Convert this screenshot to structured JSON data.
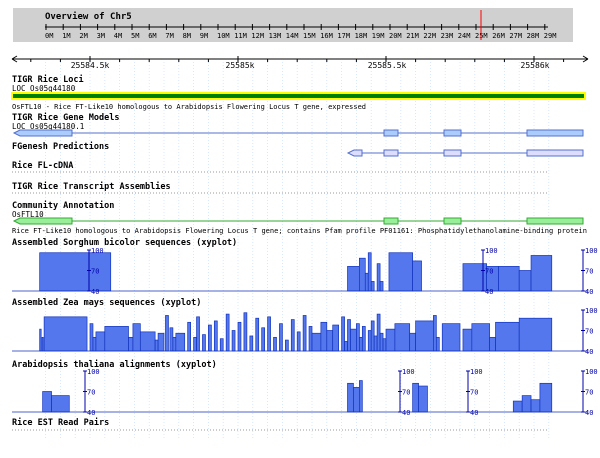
{
  "overview": {
    "title": "Overview of Chr5",
    "ticks": [
      "0M",
      "1M",
      "2M",
      "3M",
      "4M",
      "5M",
      "6M",
      "7M",
      "8M",
      "9M",
      "10M",
      "11M",
      "12M",
      "13M",
      "14M",
      "15M",
      "16M",
      "17M",
      "18M",
      "19M",
      "20M",
      "21M",
      "22M",
      "23M",
      "24M",
      "25M",
      "26M",
      "27M",
      "28M",
      "29M"
    ]
  },
  "ruler": {
    "labels": [
      "25584.5k",
      "25585k",
      "25585.5k",
      "25586k"
    ]
  },
  "tracks": {
    "tigr_loci": {
      "title": "TIGR Rice Loci",
      "feature_name": "LOC_Os05g44180",
      "description": "OsFTL10 - Rice FT-Like10 homologous to Arabidopsis Flowering Locus T gene, expressed"
    },
    "tigr_models": {
      "title": "TIGR Rice Gene Models",
      "feature_name": "LOC_Os05g44180.1"
    },
    "fgenesh": {
      "title": "FGenesh Predictions"
    },
    "fl_cdna": {
      "title": "Rice FL-cDNA"
    },
    "transcript_assemblies": {
      "title": "TIGR Rice Transcript Assemblies"
    },
    "community": {
      "title": "Community Annotation",
      "feature_name": "OsFTL10",
      "description": "Rice FT-Like10 homologous to Arabidopsis Flowering Locus T gene; contains Pfam profile PF01161: Phosphatidylethanolamine-binding protein"
    },
    "sorghum": {
      "title": "Assembled Sorghum bicolor sequences (xyplot)",
      "scale_labels": [
        "100",
        "70",
        "40"
      ]
    },
    "zea": {
      "title": "Assembled Zea mays sequences (xyplot)",
      "scale_labels": [
        "100",
        "70",
        "40"
      ]
    },
    "arabidopsis": {
      "title": "Arabidopsis thaliana alignments (xyplot)",
      "scale_labels": [
        "100",
        "70",
        "40"
      ]
    },
    "est_pairs": {
      "title": "Rice EST Read Pairs"
    }
  },
  "xyplots": {
    "sorghum": [
      {
        "x0": 25584.33,
        "x1": 25584.57,
        "v": 96
      },
      {
        "x0": 25585.37,
        "x1": 25585.41,
        "v": 76
      },
      {
        "x0": 25585.41,
        "x1": 25585.43,
        "v": 88
      },
      {
        "x0": 25585.43,
        "x1": 25585.44,
        "v": 66
      },
      {
        "x0": 25585.44,
        "x1": 25585.45,
        "v": 96
      },
      {
        "x0": 25585.45,
        "x1": 25585.46,
        "v": 54
      },
      {
        "x0": 25585.47,
        "x1": 25585.48,
        "v": 80
      },
      {
        "x0": 25585.48,
        "x1": 25585.49,
        "v": 54
      },
      {
        "x0": 25585.51,
        "x1": 25585.59,
        "v": 96
      },
      {
        "x0": 25585.59,
        "x1": 25585.62,
        "v": 84
      },
      {
        "x0": 25585.76,
        "x1": 25585.84,
        "v": 80
      },
      {
        "x0": 25585.84,
        "x1": 25585.88,
        "v": 76
      },
      {
        "x0": 25585.88,
        "x1": 25585.95,
        "v": 76
      },
      {
        "x0": 25585.95,
        "x1": 25585.99,
        "v": 70
      },
      {
        "x0": 25585.99,
        "x1": 25586.06,
        "v": 92
      }
    ],
    "zea": [
      {
        "x0": 25584.33,
        "x1": 25584.335,
        "v": 72
      },
      {
        "x0": 25584.338,
        "x1": 25584.342,
        "v": 60
      },
      {
        "x0": 25584.345,
        "x1": 25584.49,
        "v": 90
      },
      {
        "x0": 25584.5,
        "x1": 25584.51,
        "v": 80
      },
      {
        "x0": 25584.51,
        "x1": 25584.52,
        "v": 60
      },
      {
        "x0": 25584.52,
        "x1": 25584.55,
        "v": 68
      },
      {
        "x0": 25584.55,
        "x1": 25584.63,
        "v": 76
      },
      {
        "x0": 25584.63,
        "x1": 25584.645,
        "v": 60
      },
      {
        "x0": 25584.645,
        "x1": 25584.67,
        "v": 80
      },
      {
        "x0": 25584.67,
        "x1": 25584.72,
        "v": 68
      },
      {
        "x0": 25584.72,
        "x1": 25584.73,
        "v": 56
      },
      {
        "x0": 25584.73,
        "x1": 25584.75,
        "v": 66
      },
      {
        "x0": 25584.755,
        "x1": 25584.765,
        "v": 92
      },
      {
        "x0": 25584.77,
        "x1": 25584.78,
        "v": 74
      },
      {
        "x0": 25584.78,
        "x1": 25584.79,
        "v": 60
      },
      {
        "x0": 25584.79,
        "x1": 25584.82,
        "v": 66
      },
      {
        "x0": 25584.83,
        "x1": 25584.84,
        "v": 82
      },
      {
        "x0": 25584.85,
        "x1": 25584.86,
        "v": 60
      },
      {
        "x0": 25584.86,
        "x1": 25584.87,
        "v": 90
      },
      {
        "x0": 25584.88,
        "x1": 25584.89,
        "v": 64
      },
      {
        "x0": 25584.9,
        "x1": 25584.91,
        "v": 78
      },
      {
        "x0": 25584.92,
        "x1": 25584.93,
        "v": 84
      },
      {
        "x0": 25584.94,
        "x1": 25584.95,
        "v": 58
      },
      {
        "x0": 25584.96,
        "x1": 25584.97,
        "v": 94
      },
      {
        "x0": 25584.98,
        "x1": 25584.99,
        "v": 70
      },
      {
        "x0": 25585.0,
        "x1": 25585.01,
        "v": 82
      },
      {
        "x0": 25585.02,
        "x1": 25585.03,
        "v": 96
      },
      {
        "x0": 25585.04,
        "x1": 25585.05,
        "v": 62
      },
      {
        "x0": 25585.06,
        "x1": 25585.07,
        "v": 88
      },
      {
        "x0": 25585.08,
        "x1": 25585.09,
        "v": 74
      },
      {
        "x0": 25585.1,
        "x1": 25585.11,
        "v": 90
      },
      {
        "x0": 25585.12,
        "x1": 25585.13,
        "v": 60
      },
      {
        "x0": 25585.14,
        "x1": 25585.15,
        "v": 80
      },
      {
        "x0": 25585.16,
        "x1": 25585.17,
        "v": 56
      },
      {
        "x0": 25585.18,
        "x1": 25585.19,
        "v": 86
      },
      {
        "x0": 25585.2,
        "x1": 25585.21,
        "v": 68
      },
      {
        "x0": 25585.22,
        "x1": 25585.23,
        "v": 92
      },
      {
        "x0": 25585.24,
        "x1": 25585.25,
        "v": 76
      },
      {
        "x0": 25585.25,
        "x1": 25585.28,
        "v": 66
      },
      {
        "x0": 25585.28,
        "x1": 25585.3,
        "v": 82
      },
      {
        "x0": 25585.3,
        "x1": 25585.32,
        "v": 70
      },
      {
        "x0": 25585.32,
        "x1": 25585.34,
        "v": 78
      },
      {
        "x0": 25585.35,
        "x1": 25585.36,
        "v": 90
      },
      {
        "x0": 25585.36,
        "x1": 25585.37,
        "v": 54
      },
      {
        "x0": 25585.37,
        "x1": 25585.38,
        "v": 86
      },
      {
        "x0": 25585.38,
        "x1": 25585.4,
        "v": 72
      },
      {
        "x0": 25585.4,
        "x1": 25585.41,
        "v": 80
      },
      {
        "x0": 25585.41,
        "x1": 25585.42,
        "v": 60
      },
      {
        "x0": 25585.42,
        "x1": 25585.43,
        "v": 76
      },
      {
        "x0": 25585.44,
        "x1": 25585.45,
        "v": 70
      },
      {
        "x0": 25585.45,
        "x1": 25585.46,
        "v": 84
      },
      {
        "x0": 25585.46,
        "x1": 25585.47,
        "v": 62
      },
      {
        "x0": 25585.47,
        "x1": 25585.48,
        "v": 94
      },
      {
        "x0": 25585.48,
        "x1": 25585.49,
        "v": 66
      },
      {
        "x0": 25585.49,
        "x1": 25585.5,
        "v": 58
      },
      {
        "x0": 25585.5,
        "x1": 25585.53,
        "v": 72
      },
      {
        "x0": 25585.53,
        "x1": 25585.58,
        "v": 80
      },
      {
        "x0": 25585.58,
        "x1": 25585.6,
        "v": 66
      },
      {
        "x0": 25585.6,
        "x1": 25585.66,
        "v": 84
      },
      {
        "x0": 25585.66,
        "x1": 25585.67,
        "v": 92
      },
      {
        "x0": 25585.67,
        "x1": 25585.68,
        "v": 60
      },
      {
        "x0": 25585.69,
        "x1": 25585.75,
        "v": 80
      },
      {
        "x0": 25585.76,
        "x1": 25585.79,
        "v": 72
      },
      {
        "x0": 25585.79,
        "x1": 25585.85,
        "v": 80
      },
      {
        "x0": 25585.85,
        "x1": 25585.87,
        "v": 60
      },
      {
        "x0": 25585.87,
        "x1": 25585.95,
        "v": 82
      },
      {
        "x0": 25585.95,
        "x1": 25586.06,
        "v": 88
      }
    ],
    "arabidopsis": [
      {
        "x0": 25584.34,
        "x1": 25584.37,
        "v": 70
      },
      {
        "x0": 25584.37,
        "x1": 25584.43,
        "v": 64
      },
      {
        "x0": 25585.37,
        "x1": 25585.39,
        "v": 82
      },
      {
        "x0": 25585.39,
        "x1": 25585.41,
        "v": 76
      },
      {
        "x0": 25585.41,
        "x1": 25585.42,
        "v": 86
      },
      {
        "x0": 25585.59,
        "x1": 25585.61,
        "v": 82
      },
      {
        "x0": 25585.61,
        "x1": 25585.64,
        "v": 78
      },
      {
        "x0": 25585.93,
        "x1": 25585.96,
        "v": 56
      },
      {
        "x0": 25585.96,
        "x1": 25585.99,
        "v": 64
      },
      {
        "x0": 25585.99,
        "x1": 25586.02,
        "v": 58
      },
      {
        "x0": 25586.02,
        "x1": 25586.06,
        "v": 82
      }
    ]
  },
  "colors": {
    "overview_bg": "#d0d0d0",
    "highlight": "#ffff00",
    "locus_fill": "#008000",
    "model_fill": "#aaccff",
    "fgenesh_fill": "#ddddff",
    "community_fill": "#99ee99",
    "xyplot_fill": "#5577ee",
    "scale_text": "#0000aa",
    "grid": "#cfe3ff",
    "marker": "#ff0000"
  }
}
